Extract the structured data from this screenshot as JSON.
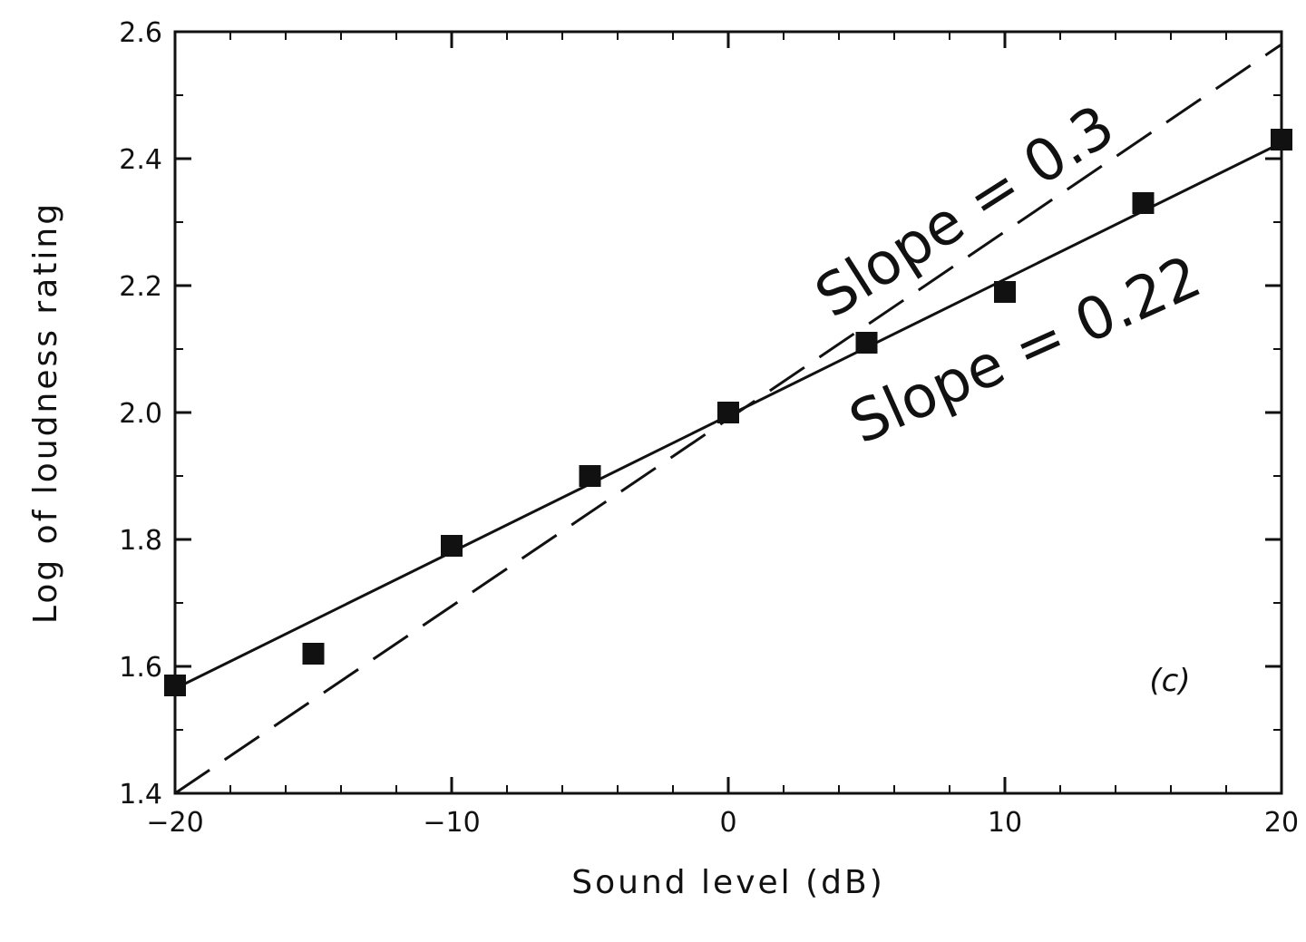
{
  "chart_data": {
    "type": "scatter",
    "title": "",
    "xlabel": "Sound level (dB)",
    "ylabel": "Log of loudness rating",
    "xlim": [
      -20,
      20
    ],
    "ylim": [
      1.4,
      2.6
    ],
    "xticks": [
      -20,
      -10,
      0,
      10,
      20
    ],
    "xtick_labels": [
      "−20",
      "−10",
      "0",
      "10",
      "20"
    ],
    "yticks": [
      1.4,
      1.6,
      1.8,
      2.0,
      2.2,
      2.4,
      2.6
    ],
    "ytick_labels": [
      "1.4",
      "1.6",
      "1.8",
      "2.0",
      "2.2",
      "2.4",
      "2.6"
    ],
    "grid": false,
    "marker": "square",
    "points": {
      "x": [
        -20,
        -15,
        -10,
        -5,
        0,
        5,
        10,
        15,
        20
      ],
      "y": [
        1.57,
        1.62,
        1.79,
        1.9,
        2.0,
        2.11,
        2.19,
        2.33,
        2.43
      ]
    },
    "lines": [
      {
        "style": "solid",
        "x": [
          -20,
          20
        ],
        "y": [
          1.565,
          2.425
        ]
      },
      {
        "style": "dashed",
        "x": [
          -20,
          20
        ],
        "y": [
          1.4,
          2.58
        ]
      }
    ],
    "annotations": [
      {
        "text": "Slope = 0.3"
      },
      {
        "text": "Slope = 0.22"
      },
      {
        "text": "(c)"
      }
    ],
    "colors": {
      "ink": "#111111",
      "background": "#ffffff"
    }
  }
}
